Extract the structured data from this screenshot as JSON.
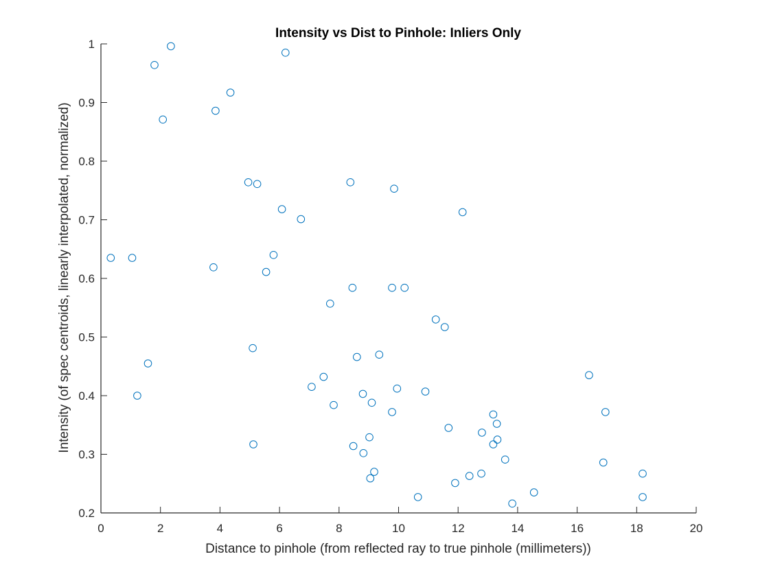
{
  "chart_data": {
    "type": "scatter",
    "title": "Intensity vs Dist to Pinhole: Inliers Only",
    "xlabel": "Distance to pinhole (from reflected ray to true pinhole (millimeters))",
    "ylabel": "Intensity (of spec centroids, linearly interpolated, normalized)",
    "xlim": [
      0,
      20
    ],
    "ylim": [
      0.2,
      1
    ],
    "xticks": [
      0,
      2,
      4,
      6,
      8,
      10,
      12,
      14,
      16,
      18,
      20
    ],
    "yticks": [
      0.2,
      0.3,
      0.4,
      0.5,
      0.6,
      0.7,
      0.8,
      0.9,
      1
    ],
    "grid": false,
    "marker": "circle-open",
    "colors": {
      "marker": "#0072BD",
      "axis": "#262626"
    },
    "series": [
      {
        "x": [
          2.35,
          6.2,
          1.8,
          4.35,
          3.85,
          2.08,
          4.95,
          5.25,
          8.38,
          9.85,
          6.08,
          6.72,
          12.15,
          0.33,
          1.05,
          3.78,
          5.8,
          5.55,
          8.45,
          9.78,
          10.2,
          7.7,
          11.25,
          11.55,
          5.1,
          9.35,
          8.6,
          1.58,
          7.48,
          7.08,
          9.95,
          10.9,
          8.8,
          9.1,
          7.82,
          1.22,
          9.78,
          13.18,
          13.3,
          11.68,
          12.8,
          13.32,
          9.02,
          5.12,
          13.18,
          8.48,
          8.82,
          13.58,
          16.4,
          16.95,
          16.88,
          9.18,
          12.78,
          12.38,
          9.05,
          11.9,
          18.2,
          14.55,
          10.65,
          13.82,
          18.2
        ],
        "y": [
          0.996,
          0.985,
          0.964,
          0.917,
          0.886,
          0.871,
          0.764,
          0.761,
          0.764,
          0.753,
          0.718,
          0.701,
          0.713,
          0.635,
          0.635,
          0.619,
          0.64,
          0.611,
          0.584,
          0.584,
          0.584,
          0.557,
          0.53,
          0.517,
          0.481,
          0.47,
          0.466,
          0.455,
          0.432,
          0.415,
          0.412,
          0.407,
          0.403,
          0.388,
          0.384,
          0.4,
          0.372,
          0.368,
          0.352,
          0.345,
          0.337,
          0.325,
          0.329,
          0.317,
          0.317,
          0.314,
          0.302,
          0.291,
          0.435,
          0.372,
          0.286,
          0.27,
          0.267,
          0.263,
          0.259,
          0.251,
          0.267,
          0.235,
          0.227,
          0.216,
          0.227
        ]
      }
    ]
  }
}
